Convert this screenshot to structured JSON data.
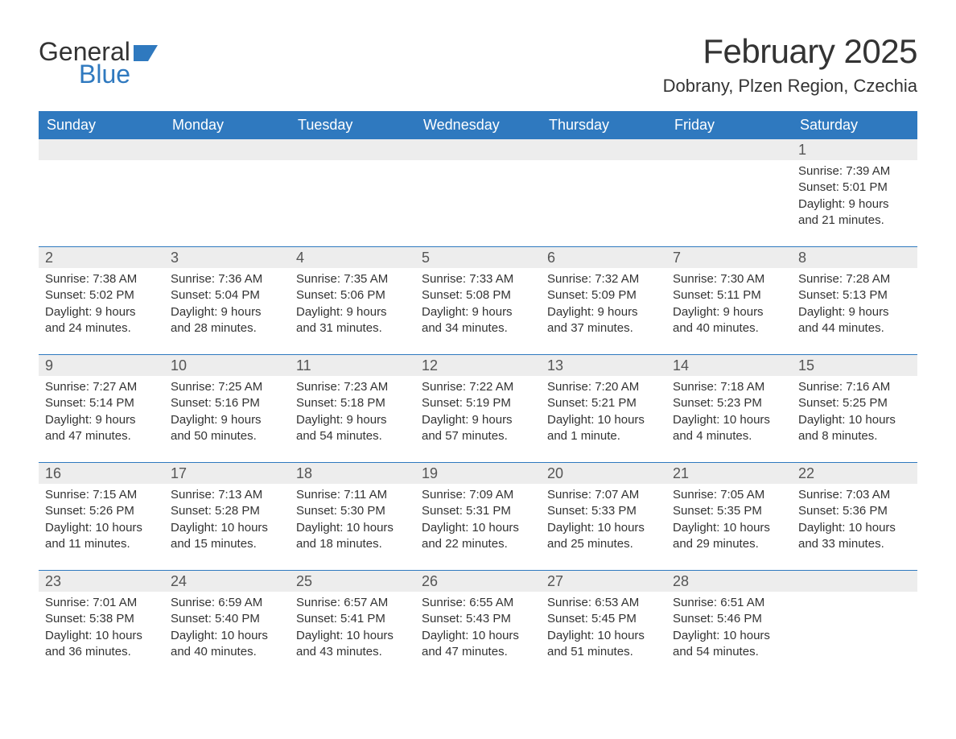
{
  "brand": {
    "part1": "General",
    "part2": "Blue",
    "brand_color": "#2f79bf"
  },
  "title": "February 2025",
  "location": "Dobrany, Plzen Region, Czechia",
  "colors": {
    "header_bg": "#2f79bf",
    "header_text": "#ffffff",
    "daynum_bg": "#ededed",
    "text": "#333333",
    "separator": "#2f79bf",
    "page_bg": "#ffffff"
  },
  "typography": {
    "title_fontsize": 42,
    "location_fontsize": 22,
    "dayhead_fontsize": 18,
    "daynum_fontsize": 18,
    "body_fontsize": 15
  },
  "day_headers": [
    "Sunday",
    "Monday",
    "Tuesday",
    "Wednesday",
    "Thursday",
    "Friday",
    "Saturday"
  ],
  "weeks": [
    [
      null,
      null,
      null,
      null,
      null,
      null,
      {
        "n": "1",
        "sunrise": "Sunrise: 7:39 AM",
        "sunset": "Sunset: 5:01 PM",
        "daylight": "Daylight: 9 hours and 21 minutes."
      }
    ],
    [
      {
        "n": "2",
        "sunrise": "Sunrise: 7:38 AM",
        "sunset": "Sunset: 5:02 PM",
        "daylight": "Daylight: 9 hours and 24 minutes."
      },
      {
        "n": "3",
        "sunrise": "Sunrise: 7:36 AM",
        "sunset": "Sunset: 5:04 PM",
        "daylight": "Daylight: 9 hours and 28 minutes."
      },
      {
        "n": "4",
        "sunrise": "Sunrise: 7:35 AM",
        "sunset": "Sunset: 5:06 PM",
        "daylight": "Daylight: 9 hours and 31 minutes."
      },
      {
        "n": "5",
        "sunrise": "Sunrise: 7:33 AM",
        "sunset": "Sunset: 5:08 PM",
        "daylight": "Daylight: 9 hours and 34 minutes."
      },
      {
        "n": "6",
        "sunrise": "Sunrise: 7:32 AM",
        "sunset": "Sunset: 5:09 PM",
        "daylight": "Daylight: 9 hours and 37 minutes."
      },
      {
        "n": "7",
        "sunrise": "Sunrise: 7:30 AM",
        "sunset": "Sunset: 5:11 PM",
        "daylight": "Daylight: 9 hours and 40 minutes."
      },
      {
        "n": "8",
        "sunrise": "Sunrise: 7:28 AM",
        "sunset": "Sunset: 5:13 PM",
        "daylight": "Daylight: 9 hours and 44 minutes."
      }
    ],
    [
      {
        "n": "9",
        "sunrise": "Sunrise: 7:27 AM",
        "sunset": "Sunset: 5:14 PM",
        "daylight": "Daylight: 9 hours and 47 minutes."
      },
      {
        "n": "10",
        "sunrise": "Sunrise: 7:25 AM",
        "sunset": "Sunset: 5:16 PM",
        "daylight": "Daylight: 9 hours and 50 minutes."
      },
      {
        "n": "11",
        "sunrise": "Sunrise: 7:23 AM",
        "sunset": "Sunset: 5:18 PM",
        "daylight": "Daylight: 9 hours and 54 minutes."
      },
      {
        "n": "12",
        "sunrise": "Sunrise: 7:22 AM",
        "sunset": "Sunset: 5:19 PM",
        "daylight": "Daylight: 9 hours and 57 minutes."
      },
      {
        "n": "13",
        "sunrise": "Sunrise: 7:20 AM",
        "sunset": "Sunset: 5:21 PM",
        "daylight": "Daylight: 10 hours and 1 minute."
      },
      {
        "n": "14",
        "sunrise": "Sunrise: 7:18 AM",
        "sunset": "Sunset: 5:23 PM",
        "daylight": "Daylight: 10 hours and 4 minutes."
      },
      {
        "n": "15",
        "sunrise": "Sunrise: 7:16 AM",
        "sunset": "Sunset: 5:25 PM",
        "daylight": "Daylight: 10 hours and 8 minutes."
      }
    ],
    [
      {
        "n": "16",
        "sunrise": "Sunrise: 7:15 AM",
        "sunset": "Sunset: 5:26 PM",
        "daylight": "Daylight: 10 hours and 11 minutes."
      },
      {
        "n": "17",
        "sunrise": "Sunrise: 7:13 AM",
        "sunset": "Sunset: 5:28 PM",
        "daylight": "Daylight: 10 hours and 15 minutes."
      },
      {
        "n": "18",
        "sunrise": "Sunrise: 7:11 AM",
        "sunset": "Sunset: 5:30 PM",
        "daylight": "Daylight: 10 hours and 18 minutes."
      },
      {
        "n": "19",
        "sunrise": "Sunrise: 7:09 AM",
        "sunset": "Sunset: 5:31 PM",
        "daylight": "Daylight: 10 hours and 22 minutes."
      },
      {
        "n": "20",
        "sunrise": "Sunrise: 7:07 AM",
        "sunset": "Sunset: 5:33 PM",
        "daylight": "Daylight: 10 hours and 25 minutes."
      },
      {
        "n": "21",
        "sunrise": "Sunrise: 7:05 AM",
        "sunset": "Sunset: 5:35 PM",
        "daylight": "Daylight: 10 hours and 29 minutes."
      },
      {
        "n": "22",
        "sunrise": "Sunrise: 7:03 AM",
        "sunset": "Sunset: 5:36 PM",
        "daylight": "Daylight: 10 hours and 33 minutes."
      }
    ],
    [
      {
        "n": "23",
        "sunrise": "Sunrise: 7:01 AM",
        "sunset": "Sunset: 5:38 PM",
        "daylight": "Daylight: 10 hours and 36 minutes."
      },
      {
        "n": "24",
        "sunrise": "Sunrise: 6:59 AM",
        "sunset": "Sunset: 5:40 PM",
        "daylight": "Daylight: 10 hours and 40 minutes."
      },
      {
        "n": "25",
        "sunrise": "Sunrise: 6:57 AM",
        "sunset": "Sunset: 5:41 PM",
        "daylight": "Daylight: 10 hours and 43 minutes."
      },
      {
        "n": "26",
        "sunrise": "Sunrise: 6:55 AM",
        "sunset": "Sunset: 5:43 PM",
        "daylight": "Daylight: 10 hours and 47 minutes."
      },
      {
        "n": "27",
        "sunrise": "Sunrise: 6:53 AM",
        "sunset": "Sunset: 5:45 PM",
        "daylight": "Daylight: 10 hours and 51 minutes."
      },
      {
        "n": "28",
        "sunrise": "Sunrise: 6:51 AM",
        "sunset": "Sunset: 5:46 PM",
        "daylight": "Daylight: 10 hours and 54 minutes."
      },
      null
    ]
  ]
}
